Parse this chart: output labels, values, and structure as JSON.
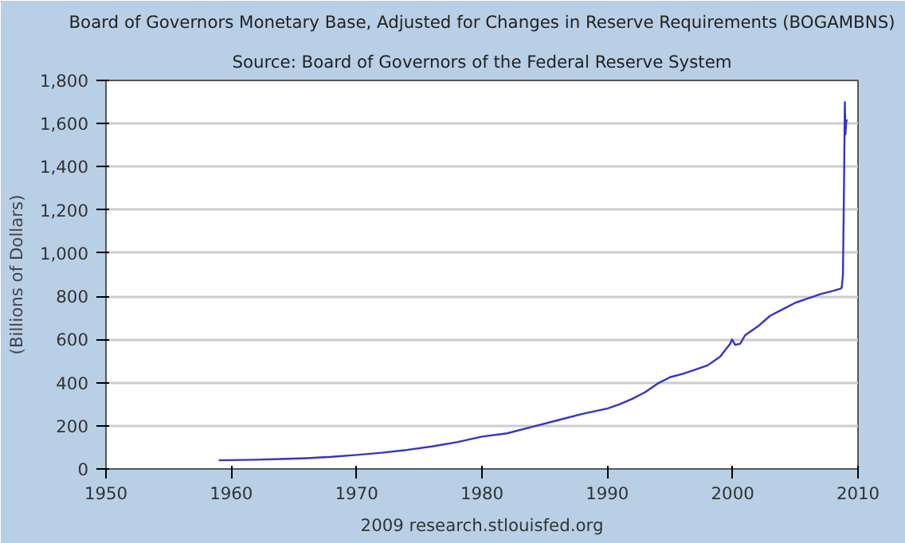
{
  "chart_data": {
    "type": "line",
    "title": "Board of Governors Monetary Base, Adjusted for Changes in Reserve Requirements (BOGAMBNS)",
    "subtitle": "Source: Board of Governors of the Federal Reserve System",
    "ylabel": "(Billions of Dollars)",
    "annotations": [
      "2009 research.stlouisfed.org"
    ],
    "x": [
      1959.0,
      1960,
      1962,
      1964,
      1966,
      1968,
      1970,
      1972,
      1974,
      1976,
      1978,
      1980,
      1982,
      1984,
      1986,
      1988,
      1990,
      1991,
      1992,
      1993,
      1994,
      1995,
      1996,
      1997,
      1998,
      1999,
      1999.8,
      1999.95,
      2000.2,
      2000.6,
      2001,
      2002,
      2003,
      2004,
      2005,
      2006,
      2007,
      2008,
      2008.6,
      2008.7,
      2008.8,
      2008.9,
      2008.95,
      2009.0,
      2009.05,
      2009.1
    ],
    "series": [
      {
        "color": "#3333cc",
        "values": [
          40,
          41,
          43,
          46,
          50,
          56,
          65,
          75,
          88,
          104,
          124,
          150,
          165,
          195,
          225,
          255,
          280,
          300,
          325,
          355,
          395,
          425,
          440,
          460,
          480,
          520,
          580,
          600,
          575,
          580,
          620,
          660,
          710,
          740,
          770,
          790,
          810,
          825,
          835,
          840,
          900,
          1400,
          1700,
          1550,
          1600,
          1620
        ]
      }
    ],
    "xlim": [
      1950,
      2010
    ],
    "ylim": [
      0,
      1800
    ],
    "xticks": [
      1950,
      1960,
      1970,
      1980,
      1990,
      2000,
      2010
    ],
    "yticks": [
      {
        "value": 0,
        "label": "0"
      },
      {
        "value": 200,
        "label": "200"
      },
      {
        "value": 400,
        "label": "400"
      },
      {
        "value": 600,
        "label": "600"
      },
      {
        "value": 800,
        "label": "800"
      },
      {
        "value": 1000,
        "label": "1,000"
      },
      {
        "value": 1200,
        "label": "1,200"
      },
      {
        "value": 1400,
        "label": "1,400"
      },
      {
        "value": 1600,
        "label": "1,600"
      },
      {
        "value": 1800,
        "label": "1,800"
      }
    ],
    "grid": "y",
    "marker": "none",
    "line_style": "solid"
  }
}
